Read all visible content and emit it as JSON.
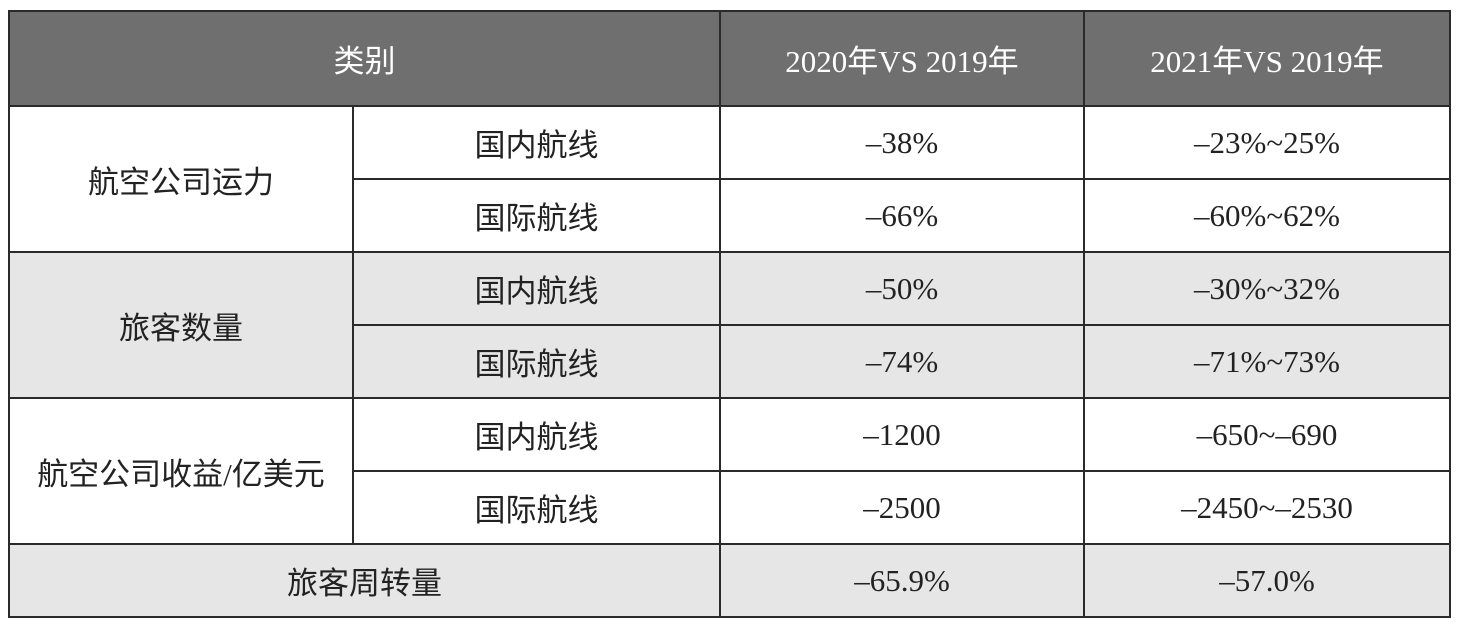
{
  "table": {
    "header": [
      "类别",
      "2020年VS 2019年",
      "2021年VS 2019年"
    ],
    "groups": [
      {
        "label": "航空公司运力",
        "rows": [
          [
            "国内航线",
            "–38%",
            "–23%~25%"
          ],
          [
            "国际航线",
            "–66%",
            "–60%~62%"
          ]
        ]
      },
      {
        "label": "旅客数量",
        "rows": [
          [
            "国内航线",
            "–50%",
            "–30%~32%"
          ],
          [
            "国际航线",
            "–74%",
            "–71%~73%"
          ]
        ]
      },
      {
        "label": "航空公司收益/亿美元",
        "rows": [
          [
            "国内航线",
            "–1200",
            "–650~–690"
          ],
          [
            "国际航线",
            "–2500",
            "–2450~–2530"
          ]
        ]
      }
    ],
    "footer": [
      "旅客周转量",
      "–65.9%",
      "–57.0%"
    ]
  }
}
